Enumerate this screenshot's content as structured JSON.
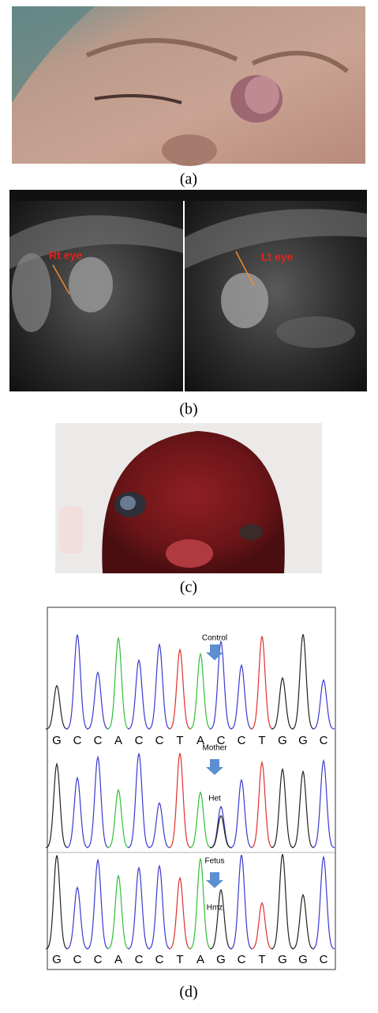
{
  "panels": [
    {
      "label": "(a)"
    },
    {
      "label": "(b)",
      "annotations": [
        "Rt eye",
        "Lt eye"
      ]
    },
    {
      "label": "(c)"
    },
    {
      "label": "(d)",
      "traces": [
        {
          "name": "Control",
          "sequence": [
            "G",
            "C",
            "C",
            "A",
            "C",
            "C",
            "T",
            "A",
            "C",
            "C",
            "T",
            "G",
            "G",
            "C"
          ]
        },
        {
          "name": "Mother",
          "call": "Het"
        },
        {
          "name": "Fetus",
          "call": "Hmz",
          "sequence": [
            "G",
            "C",
            "C",
            "A",
            "C",
            "C",
            "T",
            "A",
            "G",
            "C",
            "T",
            "G",
            "G",
            "C"
          ]
        }
      ]
    }
  ]
}
